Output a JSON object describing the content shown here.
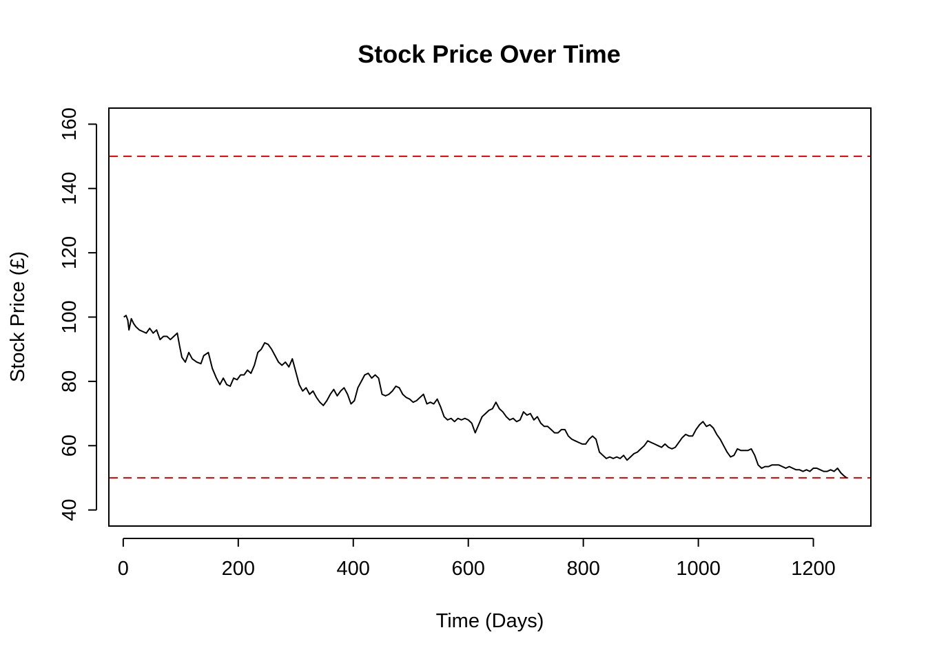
{
  "chart_data": {
    "type": "line",
    "title": "Stock Price Over Time",
    "xlabel": "Time (Days)",
    "ylabel": "Stock Price (£)",
    "xlim": [
      -25,
      1300
    ],
    "ylim": [
      35,
      165
    ],
    "x_ticks": [
      0,
      200,
      400,
      600,
      800,
      1000,
      1200
    ],
    "y_ticks": [
      40,
      60,
      80,
      100,
      120,
      140,
      160
    ],
    "grid": false,
    "series": [
      {
        "color": "#000000",
        "points": [
          [
            1,
            100
          ],
          [
            5,
            100.5
          ],
          [
            8,
            99
          ],
          [
            10,
            96
          ],
          [
            14,
            99.5
          ],
          [
            18,
            98
          ],
          [
            22,
            97
          ],
          [
            28,
            96
          ],
          [
            34,
            95.5
          ],
          [
            40,
            95
          ],
          [
            46,
            96.5
          ],
          [
            52,
            95
          ],
          [
            58,
            96
          ],
          [
            64,
            93
          ],
          [
            70,
            94
          ],
          [
            76,
            94
          ],
          [
            82,
            93
          ],
          [
            88,
            94
          ],
          [
            94,
            95
          ],
          [
            98,
            91
          ],
          [
            102,
            87.5
          ],
          [
            108,
            86
          ],
          [
            114,
            89
          ],
          [
            120,
            87
          ],
          [
            128,
            86
          ],
          [
            135,
            85.5
          ],
          [
            140,
            88
          ],
          [
            148,
            89
          ],
          [
            155,
            84
          ],
          [
            162,
            81
          ],
          [
            168,
            79
          ],
          [
            174,
            81
          ],
          [
            180,
            79
          ],
          [
            186,
            78.5
          ],
          [
            192,
            81
          ],
          [
            198,
            80.5
          ],
          [
            204,
            82
          ],
          [
            210,
            82
          ],
          [
            216,
            83.5
          ],
          [
            222,
            82.5
          ],
          [
            228,
            85
          ],
          [
            234,
            89
          ],
          [
            240,
            90
          ],
          [
            246,
            92
          ],
          [
            252,
            91.5
          ],
          [
            258,
            90
          ],
          [
            264,
            88
          ],
          [
            270,
            86
          ],
          [
            276,
            85
          ],
          [
            282,
            86
          ],
          [
            288,
            84.5
          ],
          [
            294,
            87
          ],
          [
            300,
            83
          ],
          [
            306,
            79
          ],
          [
            312,
            77
          ],
          [
            318,
            78
          ],
          [
            324,
            76
          ],
          [
            330,
            77
          ],
          [
            336,
            75
          ],
          [
            342,
            73.5
          ],
          [
            348,
            72.5
          ],
          [
            354,
            74
          ],
          [
            360,
            76
          ],
          [
            366,
            77.5
          ],
          [
            372,
            75.5
          ],
          [
            378,
            77
          ],
          [
            384,
            78
          ],
          [
            390,
            76
          ],
          [
            396,
            73
          ],
          [
            402,
            74
          ],
          [
            408,
            78
          ],
          [
            414,
            80
          ],
          [
            420,
            82
          ],
          [
            426,
            82.5
          ],
          [
            432,
            81
          ],
          [
            438,
            82
          ],
          [
            444,
            81
          ],
          [
            450,
            76
          ],
          [
            456,
            75.5
          ],
          [
            462,
            76
          ],
          [
            468,
            77
          ],
          [
            474,
            78.5
          ],
          [
            480,
            78
          ],
          [
            486,
            76
          ],
          [
            492,
            75
          ],
          [
            498,
            74.5
          ],
          [
            504,
            73.5
          ],
          [
            510,
            74
          ],
          [
            516,
            75
          ],
          [
            522,
            76
          ],
          [
            528,
            73
          ],
          [
            534,
            73.5
          ],
          [
            540,
            73
          ],
          [
            546,
            74.5
          ],
          [
            552,
            72
          ],
          [
            558,
            69
          ],
          [
            564,
            68
          ],
          [
            570,
            68.5
          ],
          [
            576,
            67.5
          ],
          [
            582,
            68.5
          ],
          [
            588,
            68
          ],
          [
            594,
            68.5
          ],
          [
            600,
            68
          ],
          [
            606,
            67
          ],
          [
            612,
            64
          ],
          [
            618,
            66.5
          ],
          [
            624,
            69
          ],
          [
            630,
            70
          ],
          [
            636,
            71
          ],
          [
            642,
            71.5
          ],
          [
            648,
            73.5
          ],
          [
            654,
            71.5
          ],
          [
            660,
            70.5
          ],
          [
            666,
            69
          ],
          [
            672,
            68
          ],
          [
            678,
            68.5
          ],
          [
            684,
            67.5
          ],
          [
            690,
            68
          ],
          [
            696,
            70.5
          ],
          [
            702,
            69.5
          ],
          [
            708,
            70
          ],
          [
            714,
            68
          ],
          [
            720,
            69
          ],
          [
            726,
            67
          ],
          [
            732,
            66
          ],
          [
            738,
            66
          ],
          [
            744,
            65
          ],
          [
            750,
            64
          ],
          [
            756,
            64
          ],
          [
            762,
            65
          ],
          [
            768,
            65
          ],
          [
            774,
            63
          ],
          [
            780,
            62
          ],
          [
            786,
            61.5
          ],
          [
            792,
            61
          ],
          [
            798,
            60.5
          ],
          [
            804,
            60.5
          ],
          [
            810,
            62
          ],
          [
            816,
            63
          ],
          [
            822,
            62
          ],
          [
            828,
            58
          ],
          [
            834,
            57
          ],
          [
            840,
            56
          ],
          [
            846,
            56.5
          ],
          [
            852,
            56
          ],
          [
            858,
            56.5
          ],
          [
            864,
            56
          ],
          [
            870,
            57
          ],
          [
            876,
            55.5
          ],
          [
            882,
            56.5
          ],
          [
            888,
            57.5
          ],
          [
            894,
            58
          ],
          [
            900,
            59
          ],
          [
            906,
            60
          ],
          [
            912,
            61.5
          ],
          [
            918,
            61
          ],
          [
            924,
            60.5
          ],
          [
            930,
            60
          ],
          [
            936,
            59.5
          ],
          [
            942,
            60.5
          ],
          [
            948,
            59.5
          ],
          [
            954,
            59
          ],
          [
            960,
            59.5
          ],
          [
            966,
            61
          ],
          [
            972,
            62.5
          ],
          [
            978,
            63.5
          ],
          [
            984,
            63
          ],
          [
            990,
            63
          ],
          [
            996,
            65
          ],
          [
            1002,
            66.5
          ],
          [
            1008,
            67.5
          ],
          [
            1014,
            66
          ],
          [
            1020,
            66.5
          ],
          [
            1026,
            65.5
          ],
          [
            1032,
            63.5
          ],
          [
            1038,
            62
          ],
          [
            1044,
            60
          ],
          [
            1050,
            58
          ],
          [
            1056,
            56.5
          ],
          [
            1062,
            57
          ],
          [
            1068,
            59
          ],
          [
            1074,
            58.5
          ],
          [
            1080,
            58.5
          ],
          [
            1086,
            58.5
          ],
          [
            1092,
            59
          ],
          [
            1098,
            57
          ],
          [
            1104,
            54
          ],
          [
            1110,
            53
          ],
          [
            1116,
            53.5
          ],
          [
            1122,
            53.5
          ],
          [
            1128,
            54
          ],
          [
            1134,
            54
          ],
          [
            1140,
            54
          ],
          [
            1146,
            53.5
          ],
          [
            1152,
            53
          ],
          [
            1158,
            53.5
          ],
          [
            1164,
            53
          ],
          [
            1170,
            52.5
          ],
          [
            1176,
            52.5
          ],
          [
            1182,
            52
          ],
          [
            1188,
            52.5
          ],
          [
            1194,
            52
          ],
          [
            1200,
            53
          ],
          [
            1206,
            53
          ],
          [
            1212,
            52.5
          ],
          [
            1218,
            52
          ],
          [
            1224,
            52
          ],
          [
            1230,
            52.5
          ],
          [
            1236,
            52
          ],
          [
            1242,
            53
          ],
          [
            1248,
            51.5
          ],
          [
            1254,
            50.5
          ],
          [
            1258,
            50
          ]
        ]
      }
    ],
    "reference_lines": [
      {
        "axis": "y",
        "value": 150,
        "color": "#ff0000",
        "style": "dashed"
      },
      {
        "axis": "y",
        "value": 50,
        "color": "#ff0000",
        "style": "dashed"
      }
    ]
  }
}
